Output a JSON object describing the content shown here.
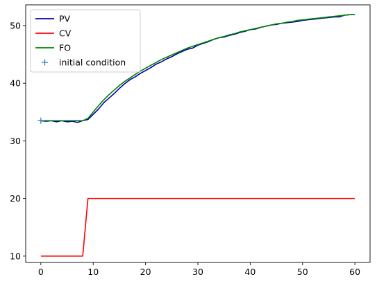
{
  "chart_data": {
    "type": "line",
    "title": "",
    "xlabel": "",
    "ylabel": "",
    "xlim": [
      -2.9,
      62.9
    ],
    "ylim": [
      8.9,
      53.6
    ],
    "x_ticks": [
      0,
      10,
      20,
      30,
      40,
      50,
      60
    ],
    "y_ticks": [
      10,
      20,
      30,
      40,
      50
    ],
    "grid": false,
    "legend_position": "top-left",
    "series": [
      {
        "name": "PV",
        "color": "#0000aa",
        "style": "line",
        "x": [
          0,
          1,
          2,
          3,
          4,
          5,
          6,
          7,
          8,
          9,
          10,
          11,
          12,
          13,
          14,
          15,
          16,
          17,
          18,
          19,
          20,
          21,
          22,
          23,
          24,
          25,
          26,
          27,
          28,
          29,
          30,
          31,
          32,
          33,
          34,
          35,
          36,
          37,
          38,
          39,
          40,
          41,
          42,
          43,
          44,
          45,
          46,
          47,
          48,
          49,
          50,
          51,
          52,
          53,
          54,
          55,
          56,
          57,
          58,
          59,
          60
        ],
        "y": [
          33.5,
          33.4,
          33.5,
          33.3,
          33.5,
          33.3,
          33.4,
          33.2,
          33.5,
          33.7,
          34.6,
          35.5,
          36.6,
          37.4,
          38.2,
          39.1,
          39.9,
          40.6,
          41.1,
          41.7,
          42.2,
          42.7,
          43.3,
          43.7,
          44.2,
          44.6,
          45.1,
          45.5,
          45.9,
          46.1,
          46.6,
          46.9,
          47.2,
          47.6,
          47.9,
          48.0,
          48.3,
          48.5,
          48.8,
          49.0,
          49.3,
          49.4,
          49.7,
          49.9,
          50.1,
          50.2,
          50.4,
          50.5,
          50.6,
          50.7,
          50.9,
          51.0,
          51.1,
          51.2,
          51.3,
          51.4,
          51.5,
          51.5,
          51.8,
          51.9,
          51.9
        ]
      },
      {
        "name": "CV",
        "color": "#ff0000",
        "style": "line",
        "x": [
          0,
          1,
          2,
          3,
          4,
          5,
          6,
          7,
          8,
          9,
          10,
          11,
          12,
          13,
          14,
          15,
          16,
          17,
          18,
          19,
          20,
          21,
          22,
          23,
          24,
          25,
          26,
          27,
          28,
          29,
          30,
          31,
          32,
          33,
          34,
          35,
          36,
          37,
          38,
          39,
          40,
          41,
          42,
          43,
          44,
          45,
          46,
          47,
          48,
          49,
          50,
          51,
          52,
          53,
          54,
          55,
          56,
          57,
          58,
          59,
          60
        ],
        "y": [
          10,
          10,
          10,
          10,
          10,
          10,
          10,
          10,
          10,
          20,
          20,
          20,
          20,
          20,
          20,
          20,
          20,
          20,
          20,
          20,
          20,
          20,
          20,
          20,
          20,
          20,
          20,
          20,
          20,
          20,
          20,
          20,
          20,
          20,
          20,
          20,
          20,
          20,
          20,
          20,
          20,
          20,
          20,
          20,
          20,
          20,
          20,
          20,
          20,
          20,
          20,
          20,
          20,
          20,
          20,
          20,
          20,
          20,
          20,
          20,
          20
        ]
      },
      {
        "name": "FO",
        "color": "#008000",
        "style": "line",
        "x": [
          0,
          1,
          2,
          3,
          4,
          5,
          6,
          7,
          8,
          9,
          10,
          11,
          12,
          13,
          14,
          15,
          16,
          17,
          18,
          19,
          20,
          21,
          22,
          23,
          24,
          25,
          26,
          27,
          28,
          29,
          30,
          31,
          32,
          33,
          34,
          35,
          36,
          37,
          38,
          39,
          40,
          41,
          42,
          43,
          44,
          45,
          46,
          47,
          48,
          49,
          50,
          51,
          52,
          53,
          54,
          55,
          56,
          57,
          58,
          59,
          60
        ],
        "y": [
          33.5,
          33.5,
          33.5,
          33.5,
          33.5,
          33.5,
          33.5,
          33.5,
          33.5,
          33.9,
          35.0,
          36.1,
          37.1,
          38.0,
          38.8,
          39.6,
          40.3,
          40.9,
          41.5,
          42.1,
          42.6,
          43.1,
          43.6,
          44.1,
          44.5,
          44.9,
          45.3,
          45.7,
          46.1,
          46.4,
          46.7,
          47.0,
          47.3,
          47.6,
          47.9,
          48.1,
          48.4,
          48.6,
          48.9,
          49.1,
          49.3,
          49.5,
          49.7,
          49.9,
          50.1,
          50.3,
          50.4,
          50.6,
          50.7,
          50.9,
          51.0,
          51.1,
          51.2,
          51.3,
          51.4,
          51.5,
          51.6,
          51.7,
          51.8,
          51.9,
          51.9
        ]
      },
      {
        "name": "initial condition",
        "color": "#1f77b4",
        "style": "marker",
        "marker": "+",
        "x": [
          0
        ],
        "y": [
          33.5
        ]
      }
    ]
  }
}
